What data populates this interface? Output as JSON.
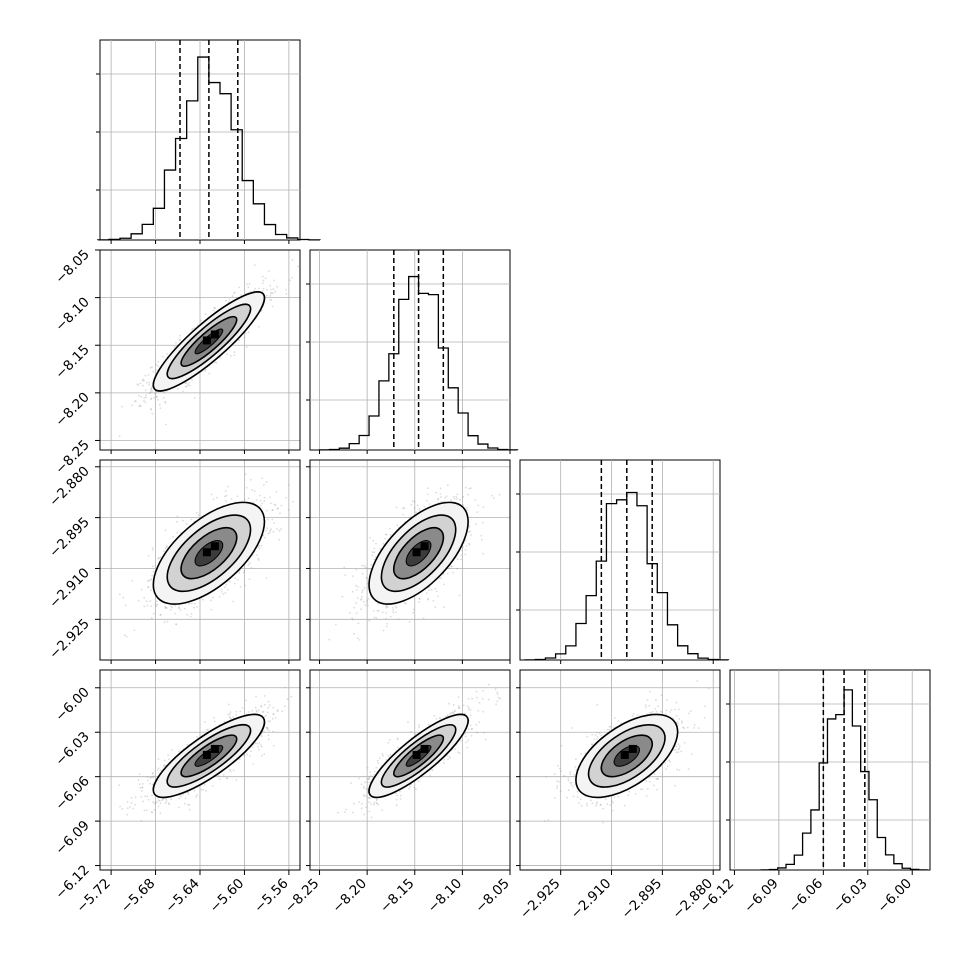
{
  "chart_data": {
    "type": "corner",
    "parameter_count": 4,
    "grid": true,
    "colors": {
      "line": "#000000",
      "scatter": "#9a9a9a",
      "grid": "#b0b0b0",
      "background": "#ffffff"
    },
    "parameters": [
      {
        "range": [
          -5.73,
          -5.55
        ],
        "ticks": [
          -5.72,
          -5.68,
          -5.64,
          -5.6,
          -5.56
        ],
        "tick_labels": [
          "−5.72",
          "−5.68",
          "−5.64",
          "−5.60",
          "−5.56"
        ],
        "quantiles": [
          -5.658,
          -5.632,
          -5.606
        ],
        "center": -5.632,
        "sd": 0.025
      },
      {
        "range": [
          -8.26,
          -8.05
        ],
        "ticks": [
          -8.25,
          -8.2,
          -8.15,
          -8.1,
          -8.05
        ],
        "tick_labels": [
          "−8.25",
          "−8.20",
          "−8.15",
          "−8.10",
          "−8.05"
        ],
        "quantiles": [
          -8.172,
          -8.146,
          -8.12
        ],
        "center": -8.146,
        "sd": 0.026
      },
      {
        "range": [
          -2.937,
          -2.878
        ],
        "ticks": [
          -2.925,
          -2.91,
          -2.895,
          -2.88
        ],
        "tick_labels": [
          "−2.925",
          "−2.910",
          "−2.895",
          "−2.880"
        ],
        "quantiles": [
          -2.913,
          -2.9055,
          -2.898
        ],
        "center": -2.9055,
        "sd": 0.0075
      },
      {
        "range": [
          -6.123,
          -5.988
        ],
        "ticks": [
          -6.12,
          -6.09,
          -6.06,
          -6.03,
          -6.0
        ],
        "tick_labels": [
          "−6.12",
          "−6.09",
          "−6.06",
          "−6.03",
          "−6.00"
        ],
        "quantiles": [
          -6.06,
          -6.046,
          -6.032
        ],
        "center": -6.046,
        "sd": 0.014
      }
    ],
    "correlations": [
      [
        1.0,
        0.88,
        0.62,
        0.82
      ],
      [
        0.88,
        1.0,
        0.62,
        0.85
      ],
      [
        0.62,
        0.62,
        1.0,
        0.58
      ],
      [
        0.82,
        0.85,
        0.58,
        1.0
      ]
    ],
    "histogram_bins": 20,
    "contour_levels_sigma": [
      0.5,
      1.0,
      1.5,
      2.0
    ],
    "scatter_points_per_panel": 1400
  }
}
